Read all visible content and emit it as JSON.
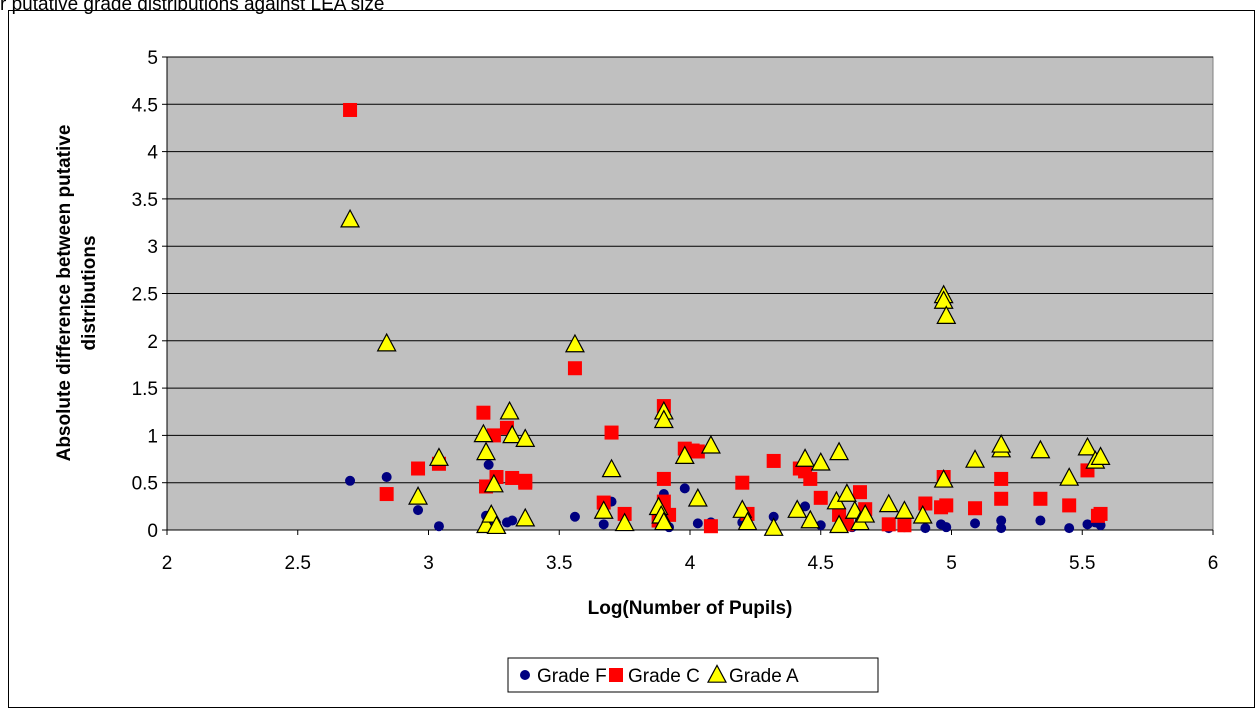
{
  "top_caption": "r putative grade distributions against LEA size",
  "chart_data": {
    "type": "scatter",
    "xlabel": "Log(Number of Pupils)",
    "ylabel": "Absolute difference between putative distributions",
    "xlim": [
      2,
      6
    ],
    "ylim": [
      0,
      5
    ],
    "x_ticks": [
      "2",
      "2.5",
      "3",
      "3.5",
      "4",
      "4.5",
      "5",
      "5.5",
      "6"
    ],
    "y_ticks": [
      "0",
      "0.5",
      "1",
      "1.5",
      "2",
      "2.5",
      "3",
      "3.5",
      "4",
      "4.5",
      "5"
    ],
    "grid": "horizontal",
    "legend_position": "bottom",
    "colors": {
      "plot_background": "#c0c0c0",
      "grade_f": "#000080",
      "grade_c": "#ff0000",
      "grade_a": "#ffff00"
    },
    "series": [
      {
        "name": "Grade F",
        "marker": "circle",
        "color": "#000080",
        "points": [
          [
            2.7,
            0.52
          ],
          [
            2.84,
            0.56
          ],
          [
            2.96,
            0.21
          ],
          [
            3.04,
            0.04
          ],
          [
            3.22,
            0.15
          ],
          [
            3.23,
            0.69
          ],
          [
            3.25,
            0.1
          ],
          [
            3.3,
            0.08
          ],
          [
            3.32,
            0.1
          ],
          [
            3.56,
            0.14
          ],
          [
            3.67,
            0.06
          ],
          [
            3.7,
            0.3
          ],
          [
            3.88,
            0.1
          ],
          [
            3.9,
            0.38
          ],
          [
            3.92,
            0.03
          ],
          [
            3.98,
            0.44
          ],
          [
            4.03,
            0.07
          ],
          [
            4.08,
            0.08
          ],
          [
            4.2,
            0.08
          ],
          [
            4.32,
            0.14
          ],
          [
            4.44,
            0.25
          ],
          [
            4.5,
            0.05
          ],
          [
            4.57,
            0.05
          ],
          [
            4.62,
            0.03
          ],
          [
            4.65,
            0.1
          ],
          [
            4.76,
            0.02
          ],
          [
            4.82,
            0.03
          ],
          [
            4.9,
            0.02
          ],
          [
            4.96,
            0.06
          ],
          [
            4.98,
            0.03
          ],
          [
            5.09,
            0.07
          ],
          [
            5.19,
            0.1
          ],
          [
            5.19,
            0.02
          ],
          [
            5.34,
            0.1
          ],
          [
            5.45,
            0.02
          ],
          [
            5.52,
            0.06
          ],
          [
            5.55,
            0.08
          ],
          [
            5.57,
            0.05
          ]
        ]
      },
      {
        "name": "Grade C",
        "marker": "square",
        "color": "#ff0000",
        "points": [
          [
            2.7,
            4.44
          ],
          [
            2.84,
            0.38
          ],
          [
            2.96,
            0.65
          ],
          [
            3.04,
            0.7
          ],
          [
            3.21,
            1.24
          ],
          [
            3.22,
            0.46
          ],
          [
            3.25,
            1.0
          ],
          [
            3.26,
            0.56
          ],
          [
            3.3,
            1.08
          ],
          [
            3.32,
            0.55
          ],
          [
            3.37,
            0.5
          ],
          [
            3.37,
            0.52
          ],
          [
            3.56,
            1.71
          ],
          [
            3.67,
            0.29
          ],
          [
            3.7,
            1.03
          ],
          [
            3.75,
            0.17
          ],
          [
            3.88,
            0.1
          ],
          [
            3.9,
            1.31
          ],
          [
            3.9,
            0.54
          ],
          [
            3.9,
            0.3
          ],
          [
            3.92,
            0.16
          ],
          [
            3.98,
            0.86
          ],
          [
            4.01,
            0.84
          ],
          [
            4.03,
            0.83
          ],
          [
            4.08,
            0.04
          ],
          [
            4.2,
            0.5
          ],
          [
            4.22,
            0.17
          ],
          [
            4.32,
            0.73
          ],
          [
            4.42,
            0.65
          ],
          [
            4.44,
            0.62
          ],
          [
            4.46,
            0.54
          ],
          [
            4.5,
            0.34
          ],
          [
            4.57,
            0.16
          ],
          [
            4.6,
            0.06
          ],
          [
            4.65,
            0.4
          ],
          [
            4.67,
            0.22
          ],
          [
            4.76,
            0.06
          ],
          [
            4.82,
            0.05
          ],
          [
            4.9,
            0.28
          ],
          [
            4.96,
            0.24
          ],
          [
            4.97,
            0.56
          ],
          [
            4.98,
            0.26
          ],
          [
            5.09,
            0.23
          ],
          [
            5.19,
            0.54
          ],
          [
            5.19,
            0.33
          ],
          [
            5.34,
            0.33
          ],
          [
            5.45,
            0.26
          ],
          [
            5.52,
            0.63
          ],
          [
            5.56,
            0.15
          ],
          [
            5.57,
            0.17
          ]
        ]
      },
      {
        "name": "Grade A",
        "marker": "triangle",
        "color": "#ffff00",
        "points": [
          [
            2.7,
            3.28
          ],
          [
            2.84,
            1.97
          ],
          [
            2.96,
            0.35
          ],
          [
            3.04,
            0.76
          ],
          [
            3.21,
            1.01
          ],
          [
            3.22,
            0.82
          ],
          [
            3.22,
            0.05
          ],
          [
            3.24,
            0.16
          ],
          [
            3.25,
            0.48
          ],
          [
            3.26,
            0.04
          ],
          [
            3.31,
            1.25
          ],
          [
            3.32,
            1.0
          ],
          [
            3.37,
            0.96
          ],
          [
            3.37,
            0.12
          ],
          [
            3.56,
            1.96
          ],
          [
            3.67,
            0.2
          ],
          [
            3.7,
            0.64
          ],
          [
            3.75,
            0.07
          ],
          [
            3.88,
            0.24
          ],
          [
            3.89,
            0.15
          ],
          [
            3.9,
            1.25
          ],
          [
            3.9,
            1.16
          ],
          [
            3.9,
            0.08
          ],
          [
            3.98,
            0.78
          ],
          [
            4.03,
            0.33
          ],
          [
            4.08,
            0.89
          ],
          [
            4.2,
            0.21
          ],
          [
            4.22,
            0.08
          ],
          [
            4.32,
            0.02
          ],
          [
            4.41,
            0.21
          ],
          [
            4.44,
            0.75
          ],
          [
            4.46,
            0.1
          ],
          [
            4.5,
            0.71
          ],
          [
            4.56,
            0.3
          ],
          [
            4.57,
            0.82
          ],
          [
            4.57,
            0.05
          ],
          [
            4.6,
            0.38
          ],
          [
            4.63,
            0.2
          ],
          [
            4.65,
            0.08
          ],
          [
            4.67,
            0.16
          ],
          [
            4.76,
            0.27
          ],
          [
            4.82,
            0.2
          ],
          [
            4.89,
            0.15
          ],
          [
            4.97,
            0.53
          ],
          [
            4.97,
            2.48
          ],
          [
            4.97,
            2.42
          ],
          [
            4.98,
            2.26
          ],
          [
            5.09,
            0.74
          ],
          [
            5.19,
            0.85
          ],
          [
            5.19,
            0.9
          ],
          [
            5.34,
            0.84
          ],
          [
            5.45,
            0.55
          ],
          [
            5.52,
            0.87
          ],
          [
            5.55,
            0.73
          ],
          [
            5.57,
            0.77
          ]
        ]
      }
    ]
  }
}
